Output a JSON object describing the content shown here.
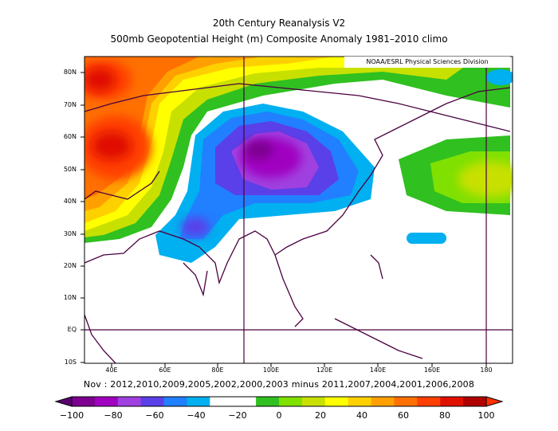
{
  "title_line1": "20th Century Reanalysis V2",
  "title_line2": "500mb Geopotential Height (m) Composite Anomaly 1981–2010 climo",
  "credit": "NOAA/ESRL Physical Sciences Division",
  "subtitle": "Nov : 2012,2010,2009,2005,2002,2000,2003  minus 2011,2007,2004,2001,2006,2008",
  "map": {
    "lon_range": [
      30,
      190
    ],
    "lat_range": [
      -10,
      85
    ],
    "lat_labels": [
      "80N",
      "70N",
      "60N",
      "50N",
      "40N",
      "30N",
      "20N",
      "10N",
      "EQ",
      "10S"
    ],
    "lon_labels": [
      "40E",
      "60E",
      "80E",
      "100E",
      "120E",
      "140E",
      "160E",
      "180"
    ],
    "grid_lines": {
      "meridians": [
        90,
        180
      ],
      "parallels": [
        0
      ]
    }
  },
  "colorbar": {
    "labels": [
      "−100",
      "−80",
      "−60",
      "−40",
      "−20",
      "0",
      "20",
      "40",
      "60",
      "80",
      "100"
    ],
    "colors": [
      "#5a0070",
      "#7d0090",
      "#a000c0",
      "#a040e0",
      "#5a40e8",
      "#2080ff",
      "#00b0f0",
      "#ffffff",
      "#ffffff",
      "#30c020",
      "#80e000",
      "#c8e000",
      "#ffff00",
      "#ffd000",
      "#ffa000",
      "#ff7000",
      "#ff4000",
      "#e01000",
      "#b00000",
      "#ff3000"
    ]
  }
}
